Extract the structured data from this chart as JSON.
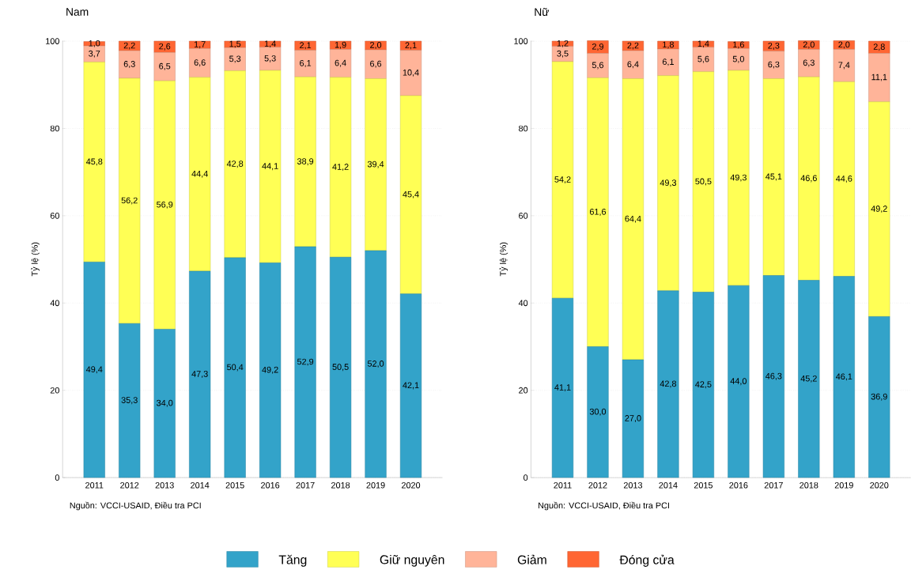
{
  "chart_data": [
    {
      "type": "bar",
      "stacked": true,
      "title": "Nam",
      "ylabel": "Tỷ lệ (%)",
      "annotations": [
        "Nguồn: VCCI-USAID, Điều tra PCI"
      ],
      "categories": [
        "2011",
        "2012",
        "2013",
        "2014",
        "2015",
        "2016",
        "2017",
        "2018",
        "2019",
        "2020"
      ],
      "ylim": [
        0,
        100.1
      ],
      "yticks": [
        0,
        20,
        40,
        60,
        80,
        100
      ],
      "grid": "y",
      "legend": "bottom",
      "series": [
        {
          "name": "Tăng",
          "color": "#33a3c9",
          "values": [
            49.4,
            35.3,
            34.0,
            47.3,
            50.4,
            49.2,
            52.9,
            50.5,
            52.0,
            42.1
          ],
          "value_labels": [
            "49,4",
            "35,3",
            "34,0",
            "47,3",
            "50,4",
            "49,2",
            "52,9",
            "50,5",
            "52,0",
            "42,1"
          ]
        },
        {
          "name": "Giữ nguyên",
          "color": "#ffff55",
          "values": [
            45.8,
            56.2,
            56.9,
            44.4,
            42.8,
            44.1,
            38.9,
            41.2,
            39.4,
            45.4
          ],
          "value_labels": [
            "45,8",
            "56,2",
            "56,9",
            "44,4",
            "42,8",
            "44,1",
            "38,9",
            "41,2",
            "39,4",
            "45,4"
          ]
        },
        {
          "name": "Giảm",
          "color": "#ffb499",
          "values": [
            3.7,
            6.3,
            6.5,
            6.6,
            5.3,
            5.3,
            6.1,
            6.4,
            6.6,
            10.4
          ],
          "value_labels": [
            "3,7",
            "6,3",
            "6,5",
            "6,6",
            "5,3",
            "5,3",
            "6,1",
            "6,4",
            "6,6",
            "10,4"
          ]
        },
        {
          "name": "Đóng cửa",
          "color": "#ff6633",
          "values": [
            1.0,
            2.2,
            2.6,
            1.7,
            1.5,
            1.4,
            2.1,
            1.9,
            2.0,
            2.1
          ],
          "value_labels": [
            "1,0",
            "2,2",
            "2,6",
            "1,7",
            "1,5",
            "1,4",
            "2,1",
            "1,9",
            "2,0",
            "2,1"
          ]
        }
      ]
    },
    {
      "type": "bar",
      "stacked": true,
      "title": "Nữ",
      "ylabel": "Tỷ lệ (%)",
      "annotations": [
        "Nguồn: VCCI-USAID, Điều tra PCI"
      ],
      "categories": [
        "2011",
        "2012",
        "2013",
        "2014",
        "2015",
        "2016",
        "2017",
        "2018",
        "2019",
        "2020"
      ],
      "ylim": [
        0,
        100.1
      ],
      "yticks": [
        0,
        20,
        40,
        60,
        80,
        100
      ],
      "grid": "y",
      "series": [
        {
          "color": "#33a3c9",
          "values": [
            41.1,
            30.0,
            27.0,
            42.8,
            42.5,
            44.0,
            46.3,
            45.2,
            46.1,
            36.9
          ],
          "value_labels": [
            "41,1",
            "30,0",
            "27,0",
            "42,8",
            "42,5",
            "44,0",
            "46,3",
            "45,2",
            "46,1",
            "36,9"
          ]
        },
        {
          "color": "#ffff55",
          "values": [
            54.2,
            61.6,
            64.4,
            49.3,
            50.5,
            49.3,
            45.1,
            46.6,
            44.6,
            49.2
          ],
          "value_labels": [
            "54,2",
            "61,6",
            "64,4",
            "49,3",
            "50,5",
            "49,3",
            "45,1",
            "46,6",
            "44,6",
            "49,2"
          ]
        },
        {
          "color": "#ffb499",
          "values": [
            3.5,
            5.6,
            6.4,
            6.1,
            5.6,
            5.0,
            6.3,
            6.3,
            7.4,
            11.1
          ],
          "value_labels": [
            "3,5",
            "5,6",
            "6,4",
            "6,1",
            "5,6",
            "5,0",
            "6,3",
            "6,3",
            "7,4",
            "11,1"
          ]
        },
        {
          "color": "#ff6633",
          "values": [
            1.2,
            2.9,
            2.2,
            1.8,
            1.4,
            1.6,
            2.3,
            2.0,
            2.0,
            2.8
          ],
          "value_labels": [
            "1,2",
            "2,9",
            "2,2",
            "1,8",
            "1,4",
            "1,6",
            "2,3",
            "2,0",
            "2,0",
            "2,8"
          ]
        }
      ]
    }
  ]
}
